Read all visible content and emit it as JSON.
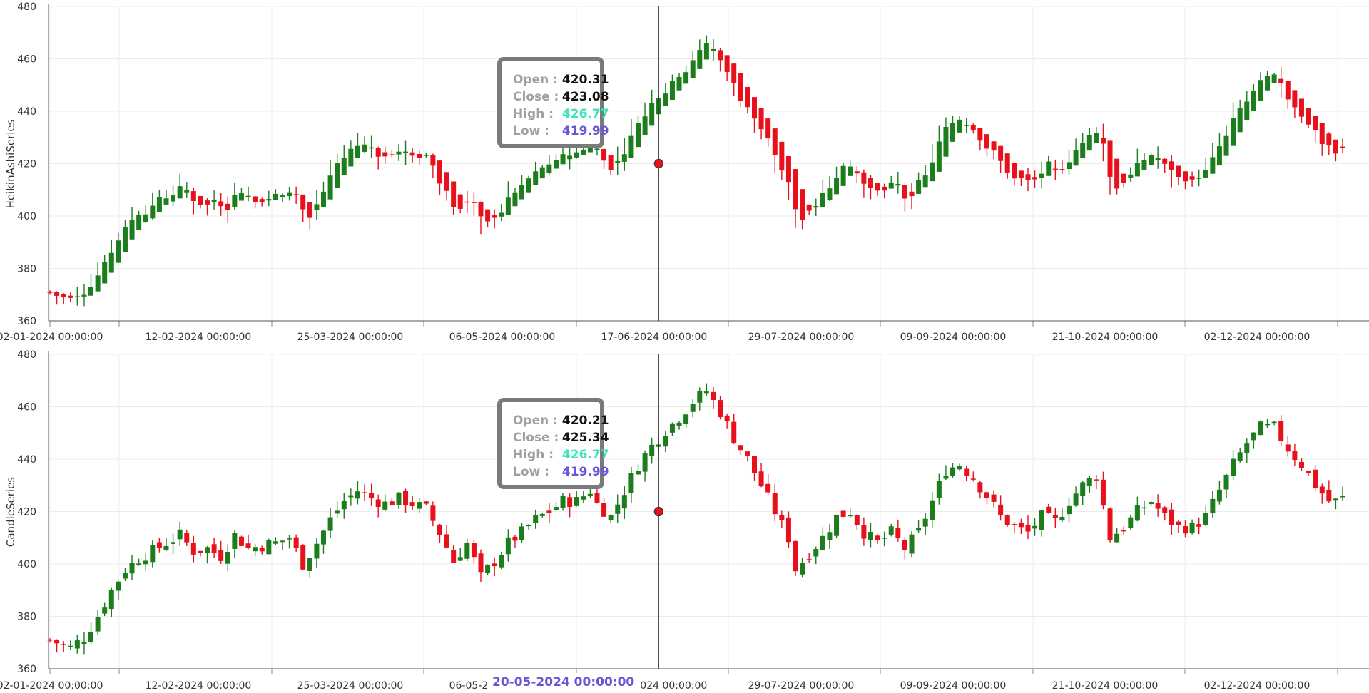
{
  "chart_data": [
    {
      "type": "candlestick",
      "series_name": "HeikinAshiSeries",
      "ylabel": "HeikinAshiSeries",
      "ylim": [
        360,
        480
      ],
      "y_ticks": [
        "360",
        "380",
        "400",
        "420",
        "440",
        "460",
        "480"
      ],
      "x_ticks": [
        "02-01-2024 00:00:00",
        "12-02-2024 00:00:00",
        "25-03-2024 00:00:00",
        "06-05-2024 00:00:00",
        "17-06-2024 00:00:00",
        "29-07-2024 00:00:00",
        "09-09-2024 00:00:00",
        "21-10-2024 00:00:00",
        "02-12-2024 00:00:00"
      ],
      "colors": {
        "up": "#1b7d1b",
        "down": "#e8101a"
      },
      "grid": true,
      "tooltip": {
        "open_label": "Open",
        "close_label": "Close",
        "high_label": "High",
        "low_label": "Low",
        "open": "420.31",
        "close": "423.08",
        "high": "426.77",
        "low": "419.99"
      }
    },
    {
      "type": "candlestick",
      "series_name": "CandleSeries",
      "ylabel": "CandleSeries",
      "ylim": [
        360,
        480
      ],
      "y_ticks": [
        "360",
        "380",
        "400",
        "420",
        "440",
        "460",
        "480"
      ],
      "x_ticks": [
        "02-01-2024 00:00:00",
        "12-02-2024 00:00:00",
        "25-03-2024 00:00:00",
        "06-05-2024 00:00:00",
        "17-06-2024 00:00:00",
        "29-07-2024 00:00:00",
        "09-09-2024 00:00:00",
        "21-10-2024 00:00:00",
        "02-12-2024 00:00:00"
      ],
      "colors": {
        "up": "#1b7d1b",
        "down": "#e8101a"
      },
      "grid": true,
      "tooltip": {
        "open_label": "Open",
        "close_label": "Close",
        "high_label": "High",
        "low_label": "Low",
        "open": "420.21",
        "close": "425.34",
        "high": "426.77",
        "low": "419.99"
      }
    }
  ],
  "crosshair": {
    "date_label": "20-05-2024 00:00:00",
    "marker_color": "#e8101a"
  },
  "close_path": [
    [
      0,
      371
    ],
    [
      3,
      368
    ],
    [
      5,
      372
    ],
    [
      7,
      380
    ],
    [
      9,
      390
    ],
    [
      11,
      398
    ],
    [
      13,
      402
    ],
    [
      15,
      405
    ],
    [
      17,
      408
    ],
    [
      19,
      411
    ],
    [
      21,
      405
    ],
    [
      23,
      406
    ],
    [
      25,
      403
    ],
    [
      27,
      411
    ],
    [
      29,
      406
    ],
    [
      31,
      407
    ],
    [
      33,
      408
    ],
    [
      35,
      410
    ],
    [
      37,
      400
    ],
    [
      39,
      408
    ],
    [
      41,
      417
    ],
    [
      43,
      424
    ],
    [
      45,
      428
    ],
    [
      47,
      425
    ],
    [
      49,
      423
    ],
    [
      51,
      425
    ],
    [
      53,
      423
    ],
    [
      55,
      421
    ],
    [
      57,
      412
    ],
    [
      59,
      401
    ],
    [
      61,
      408
    ],
    [
      63,
      395
    ],
    [
      65,
      401
    ],
    [
      67,
      408
    ],
    [
      69,
      412
    ],
    [
      71,
      417
    ],
    [
      73,
      420
    ],
    [
      75,
      424
    ],
    [
      77,
      424
    ],
    [
      79,
      428
    ],
    [
      80,
      423
    ],
    [
      82,
      418
    ],
    [
      84,
      428
    ],
    [
      86,
      438
    ],
    [
      88,
      445
    ],
    [
      90,
      451
    ],
    [
      92,
      456
    ],
    [
      94,
      462
    ],
    [
      96,
      466
    ],
    [
      98,
      458
    ],
    [
      100,
      448
    ],
    [
      102,
      440
    ],
    [
      104,
      430
    ],
    [
      106,
      420
    ],
    [
      108,
      410
    ],
    [
      109,
      398
    ],
    [
      111,
      404
    ],
    [
      113,
      410
    ],
    [
      115,
      418
    ],
    [
      117,
      420
    ],
    [
      119,
      412
    ],
    [
      121,
      408
    ],
    [
      123,
      412
    ],
    [
      125,
      406
    ],
    [
      127,
      412
    ],
    [
      129,
      424
    ],
    [
      131,
      436
    ],
    [
      133,
      438
    ],
    [
      135,
      433
    ],
    [
      137,
      426
    ],
    [
      139,
      418
    ],
    [
      141,
      414
    ],
    [
      143,
      412
    ],
    [
      145,
      418
    ],
    [
      147,
      416
    ],
    [
      149,
      424
    ],
    [
      151,
      430
    ],
    [
      153,
      434
    ],
    [
      155,
      410
    ],
    [
      157,
      414
    ],
    [
      159,
      420
    ],
    [
      161,
      424
    ],
    [
      163,
      418
    ],
    [
      165,
      414
    ],
    [
      167,
      414
    ],
    [
      169,
      418
    ],
    [
      171,
      428
    ],
    [
      173,
      438
    ],
    [
      175,
      446
    ],
    [
      177,
      452
    ],
    [
      179,
      452
    ],
    [
      181,
      444
    ],
    [
      183,
      438
    ],
    [
      185,
      430
    ],
    [
      187,
      424
    ]
  ]
}
